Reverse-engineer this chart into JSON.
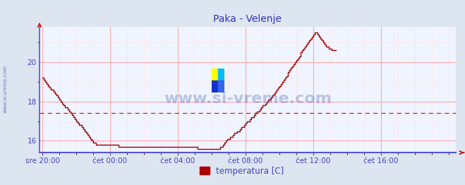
{
  "title": "Paka - Velenje",
  "title_color": "#3333bb",
  "bg_color": "#dde5f0",
  "plot_bg_color": "#f0f4ff",
  "line_color": "#990000",
  "grid_color_major": "#ffaaaa",
  "grid_color_minor": "#ffdddd",
  "dashed_line_y": 17.42,
  "dashed_line_color": "#cc2222",
  "ylim": [
    15.4,
    21.8
  ],
  "yticks": [
    16,
    18,
    20
  ],
  "tick_color": "#4444bb",
  "xtick_labels": [
    "sre 20:00",
    "čet 00:00",
    "čet 04:00",
    "čet 08:00",
    "čet 12:00",
    "čet 16:00"
  ],
  "xtick_positions": [
    0,
    48,
    96,
    144,
    192,
    240
  ],
  "xlim_max": 288,
  "watermark_text": "www.si-vreme.com",
  "watermark_color": "#3344aa",
  "legend_label": "temperatura [C]",
  "legend_color": "#aa0000",
  "side_text": "www.si-vreme.com",
  "side_text_color": "#4455bb",
  "spine_color": "#5555cc",
  "arrow_color": "#cc0000",
  "temperature_data": [
    19.2,
    19.1,
    19.0,
    18.9,
    18.8,
    18.7,
    18.6,
    18.6,
    18.5,
    18.4,
    18.3,
    18.2,
    18.1,
    18.0,
    17.9,
    17.8,
    17.7,
    17.7,
    17.6,
    17.5,
    17.4,
    17.3,
    17.2,
    17.1,
    17.0,
    16.9,
    16.8,
    16.8,
    16.7,
    16.6,
    16.5,
    16.4,
    16.3,
    16.2,
    16.1,
    16.0,
    15.9,
    15.9,
    15.8,
    15.8,
    15.8,
    15.8,
    15.8,
    15.8,
    15.8,
    15.8,
    15.8,
    15.8,
    15.8,
    15.8,
    15.8,
    15.8,
    15.8,
    15.8,
    15.7,
    15.7,
    15.7,
    15.7,
    15.7,
    15.7,
    15.7,
    15.7,
    15.7,
    15.7,
    15.7,
    15.7,
    15.7,
    15.7,
    15.7,
    15.7,
    15.7,
    15.7,
    15.7,
    15.7,
    15.7,
    15.7,
    15.7,
    15.7,
    15.7,
    15.7,
    15.7,
    15.7,
    15.7,
    15.7,
    15.7,
    15.7,
    15.7,
    15.7,
    15.7,
    15.7,
    15.7,
    15.7,
    15.7,
    15.7,
    15.7,
    15.7,
    15.7,
    15.7,
    15.7,
    15.7,
    15.7,
    15.7,
    15.7,
    15.7,
    15.7,
    15.7,
    15.7,
    15.7,
    15.7,
    15.7,
    15.6,
    15.6,
    15.6,
    15.6,
    15.6,
    15.6,
    15.6,
    15.6,
    15.6,
    15.6,
    15.6,
    15.6,
    15.6,
    15.6,
    15.6,
    15.6,
    15.7,
    15.7,
    15.8,
    15.9,
    16.0,
    16.1,
    16.1,
    16.2,
    16.2,
    16.3,
    16.4,
    16.4,
    16.5,
    16.5,
    16.6,
    16.7,
    16.7,
    16.8,
    16.9,
    17.0,
    17.0,
    17.1,
    17.2,
    17.2,
    17.3,
    17.4,
    17.5,
    17.5,
    17.6,
    17.7,
    17.8,
    17.8,
    17.9,
    18.0,
    18.1,
    18.1,
    18.2,
    18.3,
    18.4,
    18.5,
    18.6,
    18.7,
    18.8,
    18.9,
    19.0,
    19.1,
    19.2,
    19.3,
    19.5,
    19.6,
    19.7,
    19.8,
    19.9,
    20.0,
    20.1,
    20.2,
    20.3,
    20.5,
    20.6,
    20.7,
    20.8,
    20.9,
    21.0,
    21.1,
    21.2,
    21.3,
    21.4,
    21.5,
    21.5,
    21.4,
    21.3,
    21.2,
    21.1,
    21.0,
    20.9,
    20.8,
    20.8,
    20.7,
    20.7,
    20.6,
    20.6,
    20.6,
    20.6
  ]
}
